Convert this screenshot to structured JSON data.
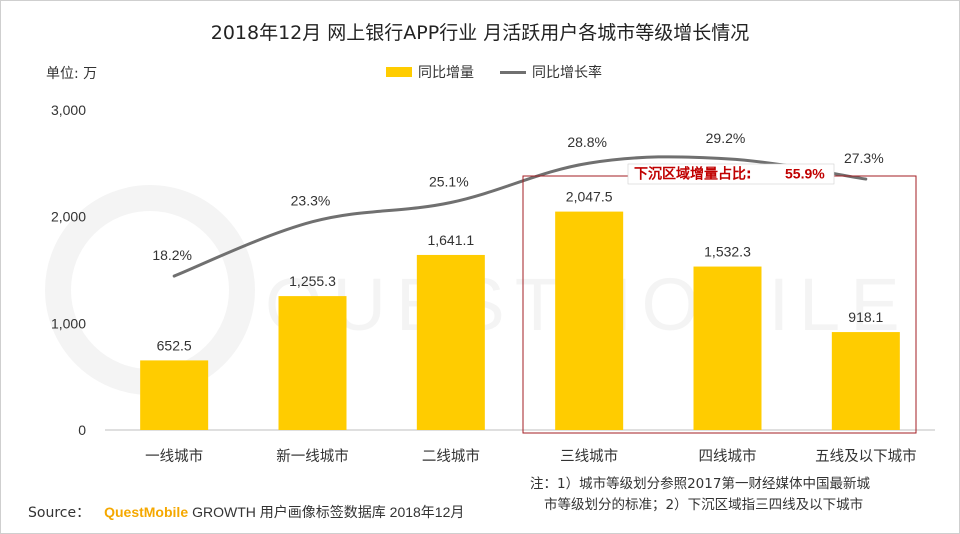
{
  "title": "2018年12月 网上银行APP行业 月活跃用户各城市等级增长情况",
  "unit_label": "单位: 万",
  "legend": {
    "bar": "同比增量",
    "line": "同比增长率"
  },
  "callout": {
    "label": "下沉区域增量占比:",
    "value": "55.9%"
  },
  "note": {
    "line1": "注：1）城市等级划分参照2017第一财经媒体中国最新城",
    "line2": "市等级划分的标准；2）下沉区域指三四线及以下城市"
  },
  "source": {
    "prefix": "Source：",
    "brand": "QuestMobile",
    "rest": "GROWTH 用户画像标签数据库 2018年12月"
  },
  "watermark": "QUESTMOBILE",
  "colors": {
    "bar": "#FFCC00",
    "line": "#707070",
    "callout": "#C00000",
    "axis": "#BFBFBF"
  },
  "chart_data": {
    "type": "bar",
    "categories": [
      "一线城市",
      "新一线城市",
      "二线城市",
      "三线城市",
      "四线城市",
      "五线及以下城市"
    ],
    "series": [
      {
        "name": "同比增量",
        "type": "bar",
        "values": [
          652.5,
          1255.3,
          1641.1,
          2047.5,
          1532.3,
          918.1
        ],
        "labels": [
          "652.5",
          "1,255.3",
          "1,641.1",
          "2,047.5",
          "1,532.3",
          "918.1"
        ]
      },
      {
        "name": "同比增长率",
        "type": "line",
        "values": [
          18.2,
          23.3,
          25.1,
          28.8,
          29.2,
          27.3
        ],
        "labels": [
          "18.2%",
          "23.3%",
          "25.1%",
          "28.8%",
          "29.2%",
          "27.3%"
        ]
      }
    ],
    "y_ticks": [
      "0",
      "1,000",
      "2,000",
      "3,000"
    ],
    "y_tick_values": [
      0,
      1000,
      2000,
      3000
    ],
    "ylim": [
      0,
      3000
    ],
    "grid": false,
    "legend_position": "top"
  }
}
